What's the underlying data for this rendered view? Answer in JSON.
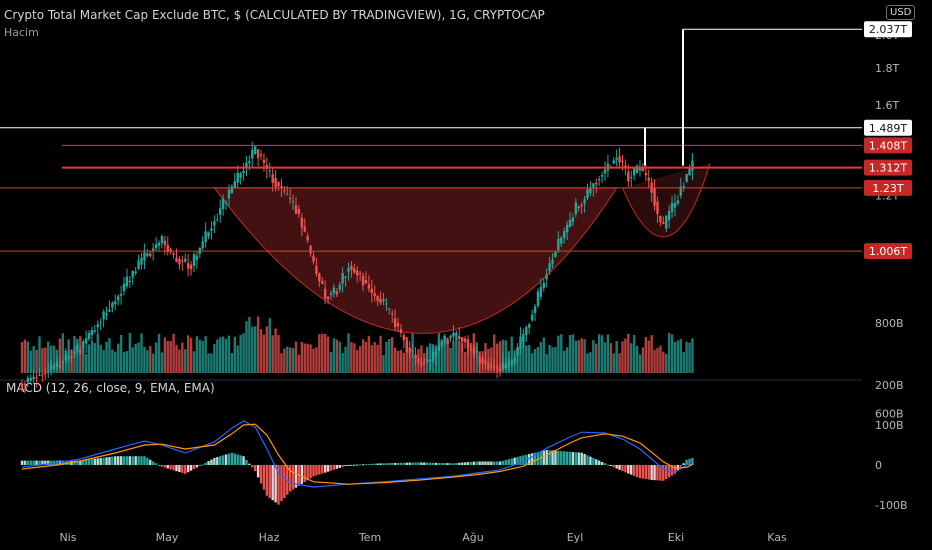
{
  "header": {
    "title": "Crypto Total Market Cap Exclude BTC, $ (CALCULATED BY TRADINGVIEW), 1G, CRYPTOCAP",
    "volume_label": "Hacim",
    "currency": "USD"
  },
  "chart_data": {
    "type": "candlestick",
    "price_axis": {
      "ticks": [
        {
          "label": "2.0T",
          "value": 2000
        },
        {
          "label": "1.8T",
          "value": 1800
        },
        {
          "label": "1.6T",
          "value": 1600
        },
        {
          "label": "1.2T",
          "value": 1200
        },
        {
          "label": "800B",
          "value": 800
        },
        {
          "label": "600B",
          "value": 600
        }
      ],
      "unit": "B USD",
      "scale": "log"
    },
    "levels": [
      {
        "label": "2.037T",
        "value": 2037,
        "color": "#ffffff",
        "style": "white-box"
      },
      {
        "label": "1.489T",
        "value": 1489,
        "color": "#ffffff",
        "style": "white-box"
      },
      {
        "label": "1.408T",
        "value": 1408,
        "color": "#e53935",
        "style": "red-box"
      },
      {
        "label": "1.312T",
        "value": 1312,
        "color": "#e53935",
        "style": "red-box-thick"
      },
      {
        "label": "1.23T",
        "value": 1230,
        "color": "#e53935",
        "style": "red-box"
      },
      {
        "label": "1.006T",
        "value": 1006,
        "color": "#e53935",
        "style": "red-box"
      }
    ],
    "price_path": [
      [
        0,
        660
      ],
      [
        6,
        700
      ],
      [
        10,
        740
      ],
      [
        16,
        860
      ],
      [
        21,
        990
      ],
      [
        24,
        1040
      ],
      [
        26,
        985
      ],
      [
        29,
        960
      ],
      [
        33,
        1110
      ],
      [
        38,
        1310
      ],
      [
        40,
        1390
      ],
      [
        42,
        1300
      ],
      [
        45,
        1205
      ],
      [
        47,
        1150
      ],
      [
        50,
        960
      ],
      [
        52,
        870
      ],
      [
        54,
        890
      ],
      [
        56,
        960
      ],
      [
        58,
        930
      ],
      [
        60,
        880
      ],
      [
        62,
        850
      ],
      [
        64,
        800
      ],
      [
        66,
        740
      ],
      [
        68,
        705
      ],
      [
        70,
        710
      ],
      [
        72,
        755
      ],
      [
        74,
        770
      ],
      [
        76,
        760
      ],
      [
        78,
        720
      ],
      [
        80,
        700
      ],
      [
        82,
        690
      ],
      [
        84,
        705
      ],
      [
        86,
        770
      ],
      [
        88,
        845
      ],
      [
        90,
        945
      ],
      [
        92,
        1030
      ],
      [
        94,
        1105
      ],
      [
        95,
        1160
      ],
      [
        96,
        1170
      ],
      [
        98,
        1250
      ],
      [
        100,
        1300
      ],
      [
        102,
        1360
      ],
      [
        103,
        1320
      ],
      [
        104,
        1270
      ],
      [
        106,
        1310
      ],
      [
        107,
        1270
      ],
      [
        108,
        1230
      ],
      [
        109,
        1125
      ],
      [
        110,
        1080
      ],
      [
        111,
        1140
      ],
      [
        112,
        1170
      ],
      [
        113,
        1230
      ],
      [
        114,
        1280
      ],
      [
        115,
        1320
      ]
    ],
    "macd": {
      "params": "MACD (12, 26, close, 9, EMA, EMA)",
      "ticks": [
        {
          "label": "200B",
          "value": 200
        },
        {
          "label": "100B",
          "value": 100
        },
        {
          "label": "0",
          "value": 0
        },
        {
          "label": "-100B",
          "value": -100
        }
      ],
      "macd_line": [
        [
          0,
          -5
        ],
        [
          6,
          5
        ],
        [
          10,
          15
        ],
        [
          16,
          40
        ],
        [
          21,
          60
        ],
        [
          24,
          50
        ],
        [
          28,
          30
        ],
        [
          33,
          58
        ],
        [
          36,
          92
        ],
        [
          38,
          110
        ],
        [
          40,
          95
        ],
        [
          42,
          40
        ],
        [
          44,
          -20
        ],
        [
          46,
          -45
        ],
        [
          50,
          -55
        ],
        [
          56,
          -48
        ],
        [
          62,
          -42
        ],
        [
          68,
          -35
        ],
        [
          74,
          -28
        ],
        [
          78,
          -20
        ],
        [
          82,
          -12
        ],
        [
          86,
          8
        ],
        [
          90,
          42
        ],
        [
          94,
          70
        ],
        [
          96,
          82
        ],
        [
          100,
          80
        ],
        [
          103,
          65
        ],
        [
          106,
          40
        ],
        [
          108,
          15
        ],
        [
          110,
          -10
        ],
        [
          112,
          -18
        ],
        [
          114,
          0
        ],
        [
          115,
          10
        ]
      ],
      "signal_line": [
        [
          0,
          -10
        ],
        [
          6,
          0
        ],
        [
          10,
          10
        ],
        [
          16,
          30
        ],
        [
          21,
          50
        ],
        [
          24,
          52
        ],
        [
          28,
          40
        ],
        [
          33,
          50
        ],
        [
          36,
          78
        ],
        [
          38,
          100
        ],
        [
          40,
          102
        ],
        [
          42,
          75
        ],
        [
          44,
          25
        ],
        [
          46,
          -15
        ],
        [
          50,
          -42
        ],
        [
          56,
          -48
        ],
        [
          62,
          -44
        ],
        [
          68,
          -38
        ],
        [
          74,
          -30
        ],
        [
          78,
          -24
        ],
        [
          82,
          -16
        ],
        [
          86,
          -3
        ],
        [
          90,
          25
        ],
        [
          94,
          55
        ],
        [
          96,
          68
        ],
        [
          100,
          78
        ],
        [
          103,
          72
        ],
        [
          106,
          55
        ],
        [
          108,
          32
        ],
        [
          110,
          8
        ],
        [
          112,
          -8
        ],
        [
          114,
          -6
        ],
        [
          115,
          2
        ]
      ]
    },
    "x_axis": {
      "ticks": [
        {
          "label": "Nis",
          "day": 0
        },
        {
          "label": "May",
          "day": 19
        },
        {
          "label": "Haz",
          "day": 37
        },
        {
          "label": "Tem",
          "day": 54
        },
        {
          "label": "Ağu",
          "day": 72
        },
        {
          "label": "Eyl",
          "day": 90
        },
        {
          "label": "Eki",
          "day": 108
        },
        {
          "label": "Kas",
          "day": 125
        }
      ]
    },
    "colors": {
      "up": "#26a69a",
      "down": "#ef5350",
      "macd": "#2962ff",
      "signal": "#ff9800",
      "cup_fill": "#7a1f1f"
    }
  }
}
